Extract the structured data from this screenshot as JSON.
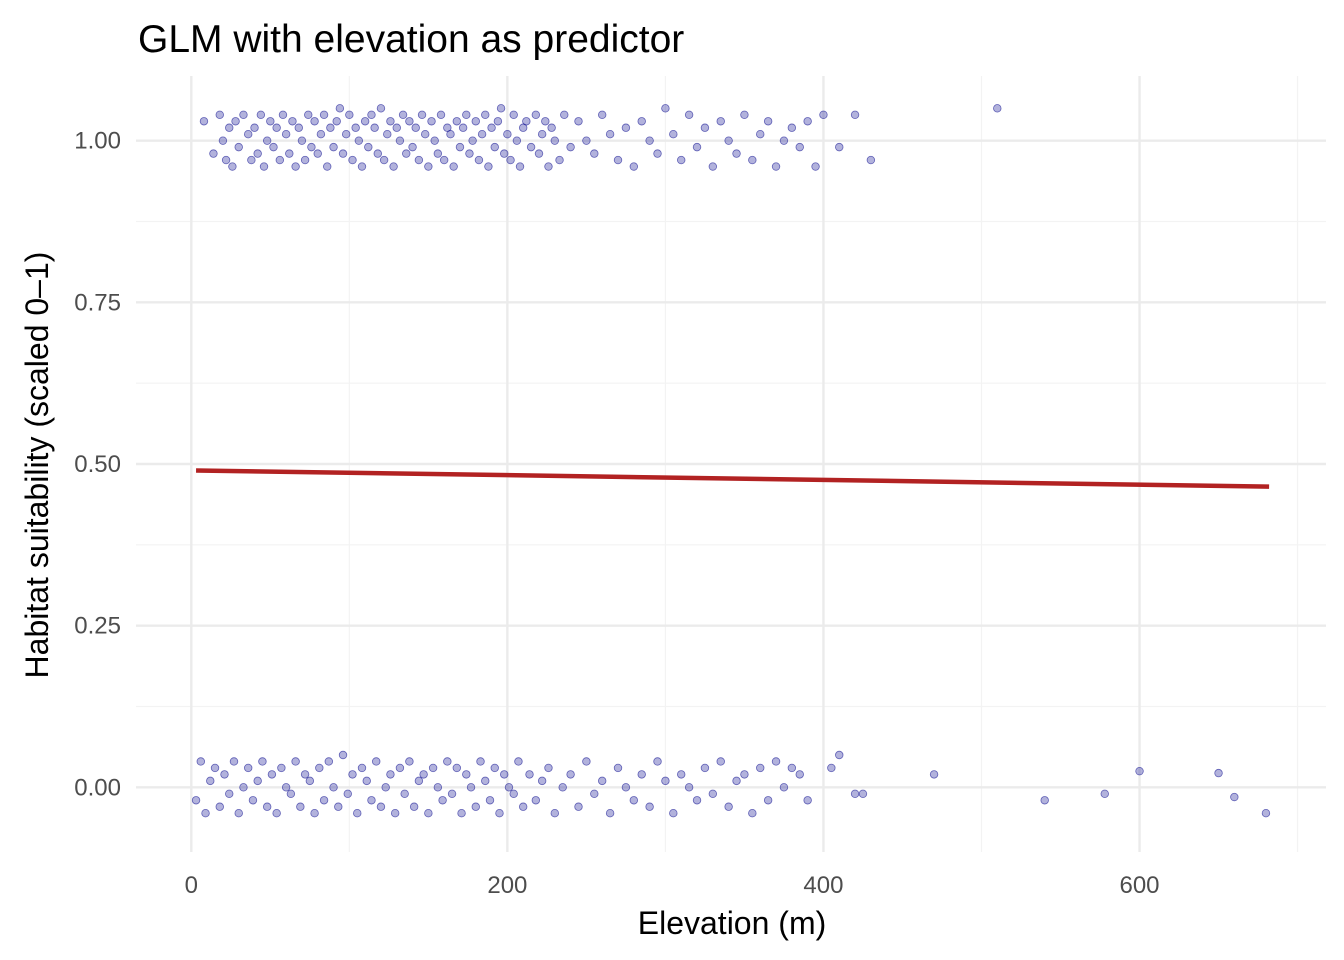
{
  "chart_data": {
    "type": "scatter",
    "title": "GLM with elevation as predictor",
    "xlabel": "Elevation (m)",
    "ylabel": "Habitat suitability (scaled 0–1)",
    "xlim": [
      -35,
      718
    ],
    "ylim": [
      -0.1,
      1.1
    ],
    "x_ticks": [
      0,
      200,
      400,
      600
    ],
    "x_tick_labels": [
      "0",
      "200",
      "400",
      "600"
    ],
    "y_ticks": [
      0,
      0.25,
      0.5,
      0.75,
      1
    ],
    "y_tick_labels": [
      "0.00",
      "0.25",
      "0.50",
      "0.75",
      "1.00"
    ],
    "grid": true,
    "legend": "none",
    "colors": {
      "points": "#00008b",
      "fit_line": "#b22222",
      "grid": "#ebebeb"
    },
    "fit_line": {
      "x": [
        3,
        682
      ],
      "y": [
        0.49,
        0.465
      ]
    },
    "presence_points": {
      "y": 1,
      "x": [
        8,
        14,
        18,
        20,
        22,
        24,
        26,
        28,
        30,
        33,
        36,
        38,
        40,
        42,
        44,
        46,
        48,
        50,
        52,
        54,
        56,
        58,
        60,
        62,
        64,
        66,
        68,
        70,
        72,
        74,
        76,
        78,
        80,
        82,
        84,
        86,
        88,
        90,
        92,
        94,
        96,
        98,
        100,
        102,
        104,
        106,
        108,
        110,
        112,
        114,
        116,
        118,
        120,
        122,
        124,
        126,
        128,
        130,
        132,
        134,
        136,
        138,
        140,
        142,
        144,
        146,
        148,
        150,
        152,
        154,
        156,
        158,
        160,
        162,
        164,
        166,
        168,
        170,
        172,
        174,
        176,
        178,
        180,
        182,
        184,
        186,
        188,
        190,
        192,
        194,
        196,
        198,
        200,
        202,
        204,
        206,
        208,
        210,
        212,
        215,
        218,
        220,
        222,
        224,
        226,
        228,
        230,
        233,
        236,
        240,
        245,
        250,
        255,
        260,
        265,
        270,
        275,
        280,
        285,
        290,
        295,
        300,
        305,
        310,
        315,
        320,
        325,
        330,
        335,
        340,
        345,
        350,
        355,
        360,
        365,
        370,
        375,
        380,
        385,
        390,
        395,
        400,
        410,
        420,
        430,
        510
      ],
      "jitter": [
        0.03,
        -0.02,
        0.04,
        0.0,
        -0.03,
        0.02,
        -0.04,
        0.03,
        -0.01,
        0.04,
        0.01,
        -0.03,
        0.02,
        -0.02,
        0.04,
        -0.04,
        0.0,
        0.03,
        -0.01,
        0.02,
        -0.03,
        0.04,
        0.01,
        -0.02,
        0.03,
        -0.04,
        0.02,
        0.0,
        -0.03,
        0.04,
        -0.01,
        0.03,
        -0.02,
        0.01,
        0.04,
        -0.04,
        0.02,
        -0.01,
        0.03,
        0.05,
        -0.02,
        0.01,
        0.04,
        -0.03,
        0.02,
        0.0,
        -0.04,
        0.03,
        -0.01,
        0.04,
        0.02,
        -0.02,
        0.05,
        -0.03,
        0.01,
        0.03,
        -0.04,
        0.02,
        0.0,
        0.04,
        -0.02,
        0.03,
        -0.01,
        0.02,
        -0.03,
        0.04,
        0.01,
        -0.04,
        0.03,
        0.0,
        -0.02,
        0.04,
        -0.03,
        0.02,
        0.01,
        -0.04,
        0.03,
        -0.01,
        0.02,
        0.04,
        -0.02,
        0.0,
        0.03,
        -0.03,
        0.01,
        0.04,
        -0.04,
        0.02,
        -0.01,
        0.03,
        0.05,
        -0.02,
        0.01,
        -0.03,
        0.04,
        0.0,
        -0.04,
        0.02,
        0.03,
        -0.01,
        0.04,
        -0.02,
        0.01,
        0.03,
        -0.04,
        0.02,
        0.0,
        -0.03,
        0.04,
        -0.01,
        0.03,
        0.0,
        -0.02,
        0.04,
        0.01,
        -0.03,
        0.02,
        -0.04,
        0.03,
        0.0,
        -0.02,
        0.05,
        0.01,
        -0.03,
        0.04,
        -0.01,
        0.02,
        -0.04,
        0.03,
        0.0,
        -0.02,
        0.04,
        -0.03,
        0.01,
        0.03,
        -0.04,
        0.0,
        0.02,
        -0.01,
        0.03,
        -0.04,
        0.04,
        -0.01,
        0.04,
        -0.03,
        0.05
      ]
    },
    "absence_points": {
      "y": 0,
      "x": [
        3,
        6,
        9,
        12,
        15,
        18,
        21,
        24,
        27,
        30,
        33,
        36,
        39,
        42,
        45,
        48,
        51,
        54,
        57,
        60,
        63,
        66,
        69,
        72,
        75,
        78,
        81,
        84,
        87,
        90,
        93,
        96,
        99,
        102,
        105,
        108,
        111,
        114,
        117,
        120,
        123,
        126,
        129,
        132,
        135,
        138,
        141,
        144,
        147,
        150,
        153,
        156,
        159,
        162,
        165,
        168,
        171,
        174,
        177,
        180,
        183,
        186,
        189,
        192,
        195,
        198,
        201,
        204,
        207,
        210,
        214,
        218,
        222,
        226,
        230,
        235,
        240,
        245,
        250,
        255,
        260,
        265,
        270,
        275,
        280,
        285,
        290,
        295,
        300,
        305,
        310,
        315,
        320,
        325,
        330,
        335,
        340,
        345,
        350,
        355,
        360,
        365,
        370,
        375,
        380,
        385,
        390,
        405,
        410,
        420,
        425,
        470,
        540,
        578,
        600,
        650,
        660,
        680
      ],
      "jitter": [
        -0.02,
        0.04,
        -0.04,
        0.01,
        0.03,
        -0.03,
        0.02,
        -0.01,
        0.04,
        -0.04,
        0.0,
        0.03,
        -0.02,
        0.01,
        0.04,
        -0.03,
        0.02,
        -0.04,
        0.03,
        0.0,
        -0.01,
        0.04,
        -0.03,
        0.02,
        0.01,
        -0.04,
        0.03,
        -0.02,
        0.04,
        0.0,
        -0.03,
        0.05,
        -0.01,
        0.02,
        -0.04,
        0.03,
        0.01,
        -0.02,
        0.04,
        -0.03,
        0.0,
        0.02,
        -0.04,
        0.03,
        -0.01,
        0.04,
        -0.03,
        0.01,
        0.02,
        -0.04,
        0.03,
        0.0,
        -0.02,
        0.04,
        -0.01,
        0.03,
        -0.04,
        0.02,
        0.0,
        -0.03,
        0.04,
        0.01,
        -0.02,
        0.03,
        -0.04,
        0.02,
        0.0,
        -0.01,
        0.04,
        -0.03,
        0.02,
        -0.02,
        0.01,
        0.03,
        -0.04,
        0.0,
        0.02,
        -0.03,
        0.04,
        -0.01,
        0.01,
        -0.04,
        0.03,
        0.0,
        -0.02,
        0.02,
        -0.03,
        0.04,
        0.01,
        -0.04,
        0.02,
        0.0,
        -0.02,
        0.03,
        -0.01,
        0.04,
        -0.03,
        0.01,
        0.02,
        -0.04,
        0.03,
        -0.02,
        0.04,
        0.0,
        0.03,
        0.02,
        -0.02,
        0.03,
        0.05,
        -0.01,
        -0.01,
        0.02,
        -0.02,
        -0.01,
        0.025,
        0.022,
        -0.015,
        -0.04
      ]
    }
  }
}
